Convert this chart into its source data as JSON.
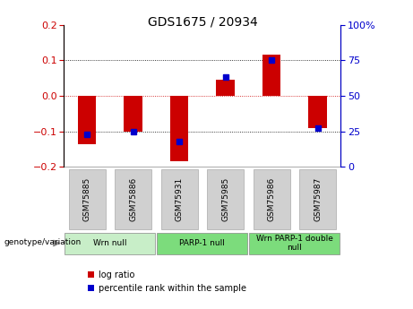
{
  "title": "GDS1675 / 20934",
  "categories": [
    "GSM75885",
    "GSM75886",
    "GSM75931",
    "GSM75985",
    "GSM75986",
    "GSM75987"
  ],
  "log_ratios": [
    -0.135,
    -0.1,
    -0.185,
    0.045,
    0.115,
    -0.09
  ],
  "percentile_ranks": [
    23,
    25,
    18,
    63,
    75,
    27
  ],
  "ylim_left": [
    -0.2,
    0.2
  ],
  "ylim_right": [
    0,
    100
  ],
  "yticks_left": [
    -0.2,
    -0.1,
    0,
    0.1,
    0.2
  ],
  "yticks_right": [
    0,
    25,
    50,
    75,
    100
  ],
  "bar_color_red": "#cc0000",
  "bar_color_blue": "#0000cc",
  "zero_line_color": "#cc0000",
  "groups": [
    {
      "label": "Wrn null",
      "start": 0,
      "end": 2,
      "color": "#c8eec8"
    },
    {
      "label": "PARP-1 null",
      "start": 2,
      "end": 4,
      "color": "#7cdc7c"
    },
    {
      "label": "Wrn PARP-1 double\nnull",
      "start": 4,
      "end": 6,
      "color": "#7cdc7c"
    }
  ],
  "legend_red_label": "log ratio",
  "legend_blue_label": "percentile rank within the sample",
  "genotype_label": "genotype/variation",
  "bar_width": 0.4,
  "percentile_marker_size": 5,
  "tick_bg_color": "#d0d0d0",
  "tick_label_fontsize": 6.5,
  "title_fontsize": 10,
  "axis_fontsize": 8
}
